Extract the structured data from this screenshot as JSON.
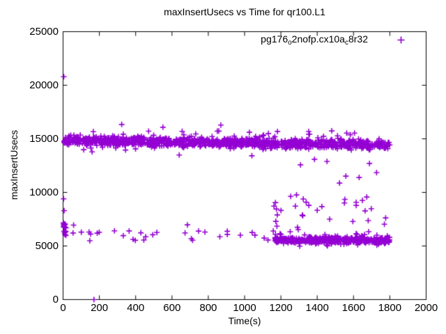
{
  "chart_data": {
    "type": "scatter",
    "title": "maxInsertUsecs vs Time for qr100.L1",
    "xlabel": "Time(s)",
    "ylabel": "maxInsertUsecs",
    "xlim": [
      0,
      2000
    ],
    "ylim": [
      0,
      25000
    ],
    "xticks": [
      0,
      200,
      400,
      600,
      800,
      1000,
      1200,
      1400,
      1600,
      1800,
      2000
    ],
    "xtick_labels": [
      "0",
      "200",
      "400",
      "600",
      "800",
      "1000",
      "1200",
      "1400",
      "1600",
      "1800",
      "2000"
    ],
    "yticks": [
      0,
      5000,
      10000,
      15000,
      20000,
      25000
    ],
    "ytick_labels": [
      "0",
      "5000",
      "10000",
      "15000",
      "20000",
      "25000"
    ],
    "grid": false,
    "legend_position": "top-right-inside",
    "background": "#ffffff",
    "axis_color": "#000000",
    "series": [
      {
        "name": "pg176_o2nofp.cx10a_c8r32",
        "label_parts": [
          {
            "text": "pg176",
            "sub": false
          },
          {
            "text": "o",
            "sub": true
          },
          {
            "text": "2nofp.cx10a",
            "sub": false
          },
          {
            "text": "c",
            "sub": true
          },
          {
            "text": "8r32",
            "sub": false
          }
        ],
        "marker": "plus",
        "color": "#9400D3",
        "points_estimated": true,
        "pattern_summary": "Dense band ~14400-15300us across 0-1800s; sparse low points ~5500-7000us until ~1160s then dense low band ~5500us from ~1170-1800s; scattered transition points 6800-13100us after 1160s; isolated outliers at ~20800us (t~4s) and 0us (t~170s). No data beyond 1800s.",
        "bands": [
          {
            "name": "upper-band",
            "count": 1050,
            "x_min": 2,
            "x_max": 1800,
            "dist": "normal",
            "y_center_start": 14900,
            "y_center_end": 14450,
            "y_spread": 1250
          },
          {
            "name": "upper-band-edge-fuzz",
            "count": 110,
            "x_min": 2,
            "x_max": 1800,
            "dist": "uniform",
            "y_min": 13950,
            "y_max": 15750
          },
          {
            "name": "lower-band-dense",
            "count": 430,
            "x_min": 1168,
            "x_max": 1800,
            "dist": "normal",
            "y_center_start": 5560,
            "y_center_end": 5520,
            "y_spread": 780
          },
          {
            "name": "lower-band-edge-fuzz",
            "count": 45,
            "x_min": 1168,
            "x_max": 1800,
            "dist": "uniform",
            "y_min": 4950,
            "y_max": 6450
          },
          {
            "name": "lower-sparse-left",
            "count": 30,
            "x_min": 40,
            "x_max": 1150,
            "dist": "uniform",
            "y_min": 5450,
            "y_max": 6550
          },
          {
            "name": "start-burst",
            "count": 11,
            "x_min": 0,
            "x_max": 18,
            "dist": "normal",
            "y_center_start": 6950,
            "y_center_end": 6950,
            "y_spread": 900
          },
          {
            "name": "start-burst-low",
            "count": 6,
            "x_min": 2,
            "x_max": 16,
            "dist": "uniform",
            "y_min": 5600,
            "y_max": 6500
          },
          {
            "name": "transition-scatter",
            "count": 20,
            "x_min": 1155,
            "x_max": 1800,
            "dist": "uniform",
            "y_min": 6300,
            "y_max": 9800
          }
        ],
        "outlier_points": [
          [
            4,
            20800
          ],
          [
            170,
            0
          ],
          [
            3,
            9400
          ],
          [
            6,
            8300
          ],
          [
            58,
            6950
          ],
          [
            323,
            16340
          ],
          [
            550,
            16080
          ],
          [
            685,
            6970
          ],
          [
            869,
            16280
          ],
          [
            160,
            13780
          ],
          [
            640,
            13490
          ],
          [
            1040,
            13420
          ],
          [
            1162,
            8720
          ],
          [
            1170,
            9050
          ],
          [
            1175,
            8450
          ],
          [
            1180,
            7900
          ],
          [
            1172,
            7300
          ],
          [
            1178,
            6850
          ],
          [
            1254,
            9630
          ],
          [
            1308,
            12570
          ],
          [
            1323,
            9380
          ],
          [
            1354,
            8790
          ],
          [
            1385,
            13090
          ],
          [
            1400,
            8330
          ],
          [
            1454,
            12890
          ],
          [
            1523,
            10870
          ],
          [
            1558,
            11520
          ],
          [
            1615,
            8790
          ],
          [
            1631,
            11390
          ],
          [
            1673,
            9570
          ],
          [
            1688,
            12700
          ],
          [
            1727,
            11850
          ],
          [
            1770,
            7030
          ],
          [
            1777,
            7620
          ]
        ]
      }
    ]
  }
}
